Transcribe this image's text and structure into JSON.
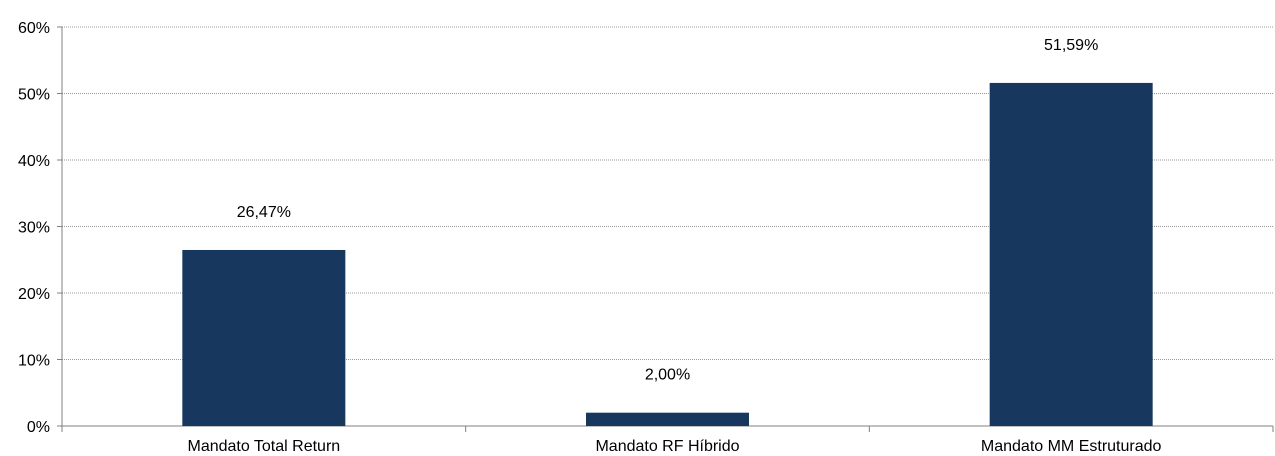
{
  "chart_data": {
    "type": "bar",
    "title": "",
    "xlabel": "",
    "ylabel": "",
    "categories": [
      "Mandato Total Return",
      "Mandato RF Híbrido",
      "Mandato MM Estruturado"
    ],
    "values": [
      26.47,
      2.0,
      51.59
    ],
    "data_labels": [
      "26,47%",
      "2,00%",
      "51,59%"
    ],
    "ylim": [
      0,
      60
    ],
    "y_ticks": [
      0,
      10,
      20,
      30,
      40,
      50,
      60
    ],
    "y_tick_labels": [
      "0%",
      "10%",
      "20%",
      "30%",
      "40%",
      "50%",
      "60%"
    ],
    "grid": true,
    "legend": "none",
    "bar_color": "#17375e"
  }
}
